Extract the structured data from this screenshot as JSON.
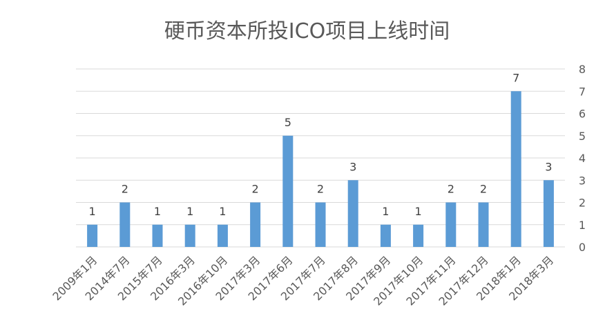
{
  "chart_data": {
    "type": "bar",
    "title": "硬币资本所投ICO项目上线时间",
    "categories": [
      "2009年1月",
      "2014年7月",
      "2015年7月",
      "2016年3月",
      "2016年10月",
      "2017年3月",
      "2017年6月",
      "2017年7月",
      "2017年8月",
      "2017年9月",
      "2017年10月",
      "2017年11月",
      "2017年12月",
      "2018年1月",
      "2018年3月"
    ],
    "values": [
      1,
      2,
      1,
      1,
      1,
      2,
      5,
      2,
      3,
      1,
      1,
      2,
      2,
      7,
      3
    ],
    "ylim": [
      0,
      8
    ],
    "yticks": [
      "0",
      "1",
      "2",
      "3",
      "4",
      "5",
      "6",
      "7",
      "8"
    ],
    "y_axis_position": "right",
    "grid": true,
    "data_labels": true,
    "bar_color": "#5B9BD5",
    "grid_color": "#D9D9D9"
  }
}
